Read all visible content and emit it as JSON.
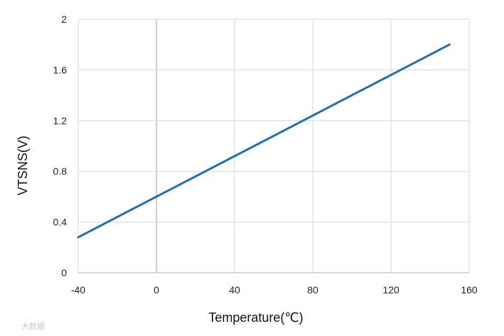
{
  "chart_data": {
    "type": "line",
    "title": "",
    "xlabel": "Temperature(℃)",
    "ylabel": "VTSNS(V)",
    "xlim": [
      -40,
      160
    ],
    "ylim": [
      0,
      2
    ],
    "xticks": [
      -40,
      0,
      40,
      80,
      120,
      160
    ],
    "yticks": [
      0,
      0.4,
      0.8,
      1.2,
      1.6,
      2
    ],
    "x_tick_labels": [
      "-40",
      "0",
      "40",
      "80",
      "120",
      "160"
    ],
    "y_tick_labels": [
      "0",
      "0.4",
      "0.8",
      "1.2",
      "1.6",
      "2"
    ],
    "grid": true,
    "legend": "none",
    "series": [
      {
        "color": "#1f6fb2",
        "x": [
          -40,
          150
        ],
        "y": [
          0.28,
          1.8
        ]
      }
    ]
  },
  "watermark": {
    "text": "大数据"
  }
}
